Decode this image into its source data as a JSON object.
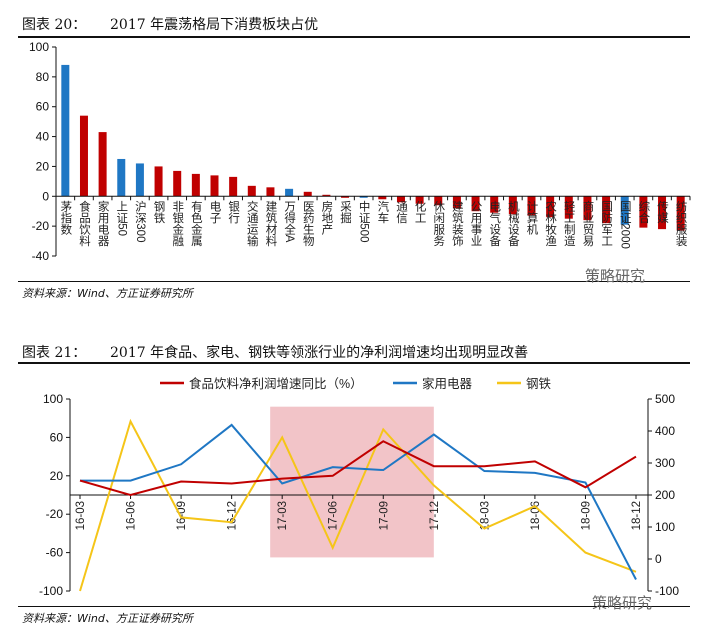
{
  "figure1": {
    "label": "图表 20：",
    "title": "2017 年震荡格局下消费板块占优",
    "source": "资料来源：Wind、方正证券研究所",
    "watermark": "策略研究"
  },
  "figure2": {
    "label": "图表 21：",
    "title": "2017 年食品、家电、钢铁等领涨行业的净利润增速均出现明显改善",
    "source": "资料来源：Wind、方正证券研究所",
    "watermark": "策略研究"
  },
  "colors": {
    "red": "#c00000",
    "blue": "#1f77c4",
    "yellow": "#f5c518",
    "shade": "#f2c4c8"
  },
  "chart_data": [
    {
      "type": "bar",
      "title": "2017 年震荡格局下消费板块占优",
      "ylim": [
        -40,
        100
      ],
      "yticks": [
        -40,
        -20,
        0,
        20,
        40,
        60,
        80,
        100
      ],
      "categories": [
        "茅指数",
        "食品饮料",
        "家用电器",
        "上证50",
        "沪深300",
        "钢铁",
        "非银金融",
        "有色金属",
        "电子",
        "银行",
        "交通运输",
        "建筑材料",
        "万得全A",
        "医药生物",
        "房地产",
        "采掘",
        "中证500",
        "汽车",
        "通信",
        "化工",
        "休闲服务",
        "建筑装饰",
        "公用事业",
        "电气设备",
        "机械设备",
        "计算机",
        "农林牧渔",
        "轻工制造",
        "商业贸易",
        "国防军工",
        "国证2000",
        "综合",
        "传媒",
        "纺织服装"
      ],
      "values": [
        88,
        54,
        43,
        25,
        22,
        20,
        17,
        15,
        14,
        13,
        7,
        6,
        5,
        3,
        1,
        -1,
        -1,
        -2,
        -4,
        -5,
        -6,
        -8,
        -10,
        -11,
        -12,
        -13,
        -14,
        -15,
        -16,
        -18,
        -19,
        -21,
        -22,
        -23
      ],
      "highlight": [
        "茅指数",
        "上证50",
        "沪深300",
        "万得全A",
        "中证500",
        "国证2000"
      ]
    },
    {
      "type": "line",
      "title": "2017 年食品、家电、钢铁等领涨行业的净利润增速均出现明显改善",
      "x": [
        "16-03",
        "16-06",
        "16-09",
        "16-12",
        "17-03",
        "17-06",
        "17-09",
        "17-12",
        "18-03",
        "18-06",
        "18-09",
        "18-12"
      ],
      "ylim_left": [
        -100,
        100
      ],
      "yticks_left": [
        -100,
        -60,
        -20,
        20,
        60,
        100
      ],
      "ylim_right": [
        -100,
        500
      ],
      "yticks_right": [
        -100,
        0,
        100,
        200,
        300,
        400,
        500
      ],
      "shaded_range": [
        "17-03",
        "17-12"
      ],
      "series": [
        {
          "name": "食品饮料净利润增速同比（%）",
          "axis": "left",
          "color": "#c00000",
          "values": [
            15,
            0,
            14,
            12,
            17,
            20,
            56,
            30,
            30,
            35,
            8,
            40
          ]
        },
        {
          "name": "家用电器",
          "axis": "left",
          "color": "#1f77c4",
          "values": [
            15,
            15,
            32,
            73,
            12,
            29,
            26,
            63,
            25,
            23,
            13,
            -88
          ]
        },
        {
          "name": "钢铁",
          "axis": "right",
          "color": "#f5c518",
          "values": [
            -100,
            430,
            130,
            115,
            380,
            35,
            405,
            230,
            95,
            165,
            20,
            -40
          ]
        }
      ]
    }
  ]
}
